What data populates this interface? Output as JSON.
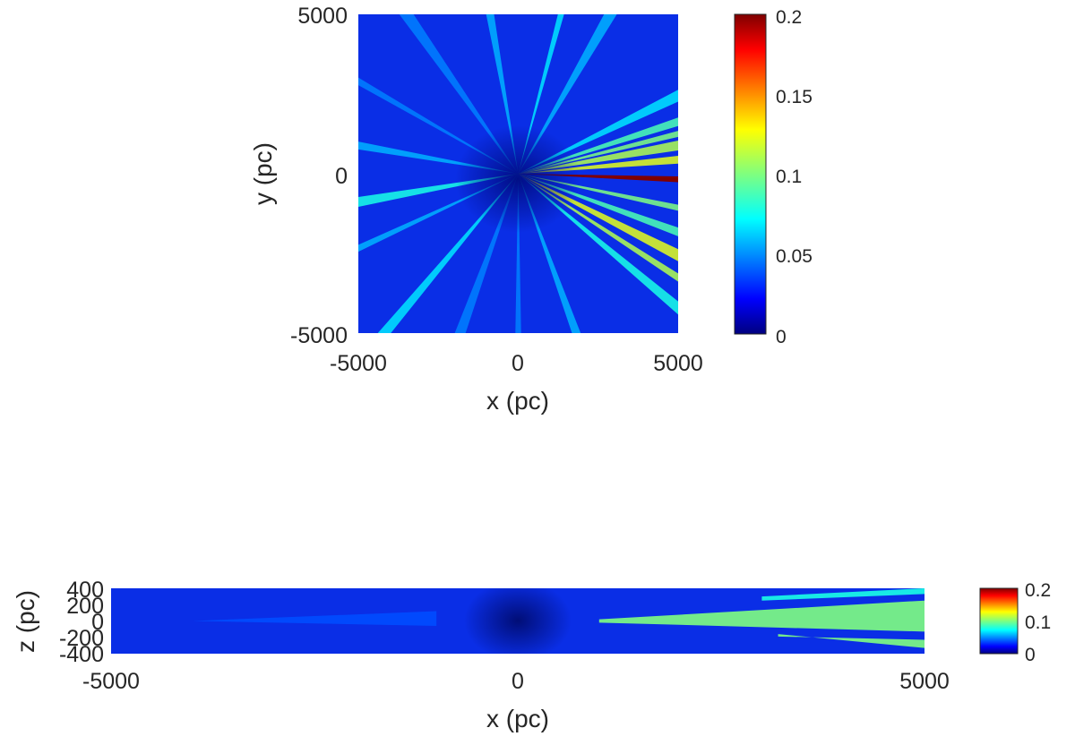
{
  "chart_data": [
    {
      "type": "heatmap",
      "panel": "top",
      "title": "",
      "xlabel": "x (pc)",
      "ylabel": "y (pc)",
      "xlim": [
        -5000,
        5000
      ],
      "ylim": [
        -5000,
        5000
      ],
      "xticks": [
        "-5000",
        "0",
        "5000"
      ],
      "yticks": [
        "5000",
        "0",
        "-5000"
      ],
      "colormap": "jet",
      "clim": [
        0,
        0.2
      ],
      "colorbar_ticks": [
        "0.2",
        "0.15",
        "0.1",
        "0.05",
        "0"
      ],
      "rays": [
        {
          "angle_deg": -2,
          "value": 0.2
        },
        {
          "angle_deg": 5,
          "value": 0.12
        },
        {
          "angle_deg": 10,
          "value": 0.11
        },
        {
          "angle_deg": 14,
          "value": 0.1
        },
        {
          "angle_deg": 18,
          "value": 0.09
        },
        {
          "angle_deg": 26,
          "value": 0.07
        },
        {
          "angle_deg": -12,
          "value": 0.1
        },
        {
          "angle_deg": -20,
          "value": 0.09
        },
        {
          "angle_deg": -27,
          "value": 0.12
        },
        {
          "angle_deg": -33,
          "value": 0.11
        },
        {
          "angle_deg": -40,
          "value": 0.08
        },
        {
          "angle_deg": 60,
          "value": 0.06
        },
        {
          "angle_deg": 75,
          "value": 0.07
        },
        {
          "angle_deg": 100,
          "value": 0.06
        },
        {
          "angle_deg": 125,
          "value": 0.05
        },
        {
          "angle_deg": 150,
          "value": 0.05
        },
        {
          "angle_deg": 170,
          "value": 0.06
        },
        {
          "angle_deg": 190,
          "value": 0.08
        },
        {
          "angle_deg": 205,
          "value": 0.06
        },
        {
          "angle_deg": 230,
          "value": 0.07
        },
        {
          "angle_deg": 250,
          "value": 0.05
        },
        {
          "angle_deg": 270,
          "value": 0.05
        },
        {
          "angle_deg": 290,
          "value": 0.06
        }
      ]
    },
    {
      "type": "heatmap",
      "panel": "bottom",
      "title": "",
      "xlabel": "x (pc)",
      "ylabel": "z (pc)",
      "xlim": [
        -5000,
        5000
      ],
      "ylim": [
        -400,
        400
      ],
      "xticks": [
        "-5000",
        "0",
        "5000"
      ],
      "yticks": [
        "400",
        "200",
        "0",
        "-200",
        "-400"
      ],
      "colormap": "jet",
      "clim": [
        0,
        0.2
      ],
      "colorbar_ticks": [
        "0.2",
        "0.1",
        "0"
      ],
      "bands": [
        {
          "x_start": 1000,
          "x_end": 5000,
          "z_start": -20,
          "z_end": 20,
          "z_end_top": 250,
          "z_end_bottom": -130,
          "value": 0.1
        },
        {
          "x_start": 3000,
          "x_end": 5000,
          "z_start": 250,
          "z_end": 300,
          "z_end_top": 400,
          "z_end_bottom": 330,
          "value": 0.08
        },
        {
          "x_start": 3200,
          "x_end": 5000,
          "z_start": -160,
          "z_end": -190,
          "z_end_top": -230,
          "z_end_bottom": -330,
          "value": 0.1
        },
        {
          "x_start": -4000,
          "x_end": -1000,
          "z_start": 0,
          "z_end": 0,
          "z_end_top": 120,
          "z_end_bottom": -60,
          "value": 0.04
        }
      ]
    }
  ]
}
